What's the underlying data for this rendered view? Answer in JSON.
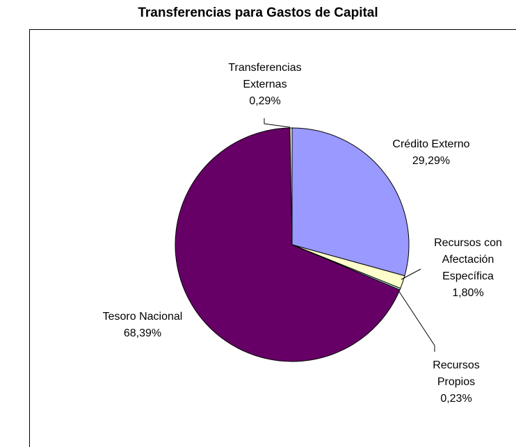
{
  "chart_data": {
    "type": "pie",
    "title": "Transferencias para Gastos de Capital",
    "categories": [
      "Crédito Externo",
      "Recursos con Afectación Específica",
      "Recursos Propios",
      "Tesoro Nacional",
      "Transferencias Externas"
    ],
    "values": [
      29.29,
      1.8,
      0.23,
      68.39,
      0.29
    ],
    "value_labels": [
      "29,29%",
      "1,80%",
      "0,23%",
      "68,39%",
      "0,29%"
    ],
    "colors": [
      "#9999ff",
      "#ffffcc",
      "#ccffff",
      "#660066",
      "#ffffcc"
    ]
  }
}
